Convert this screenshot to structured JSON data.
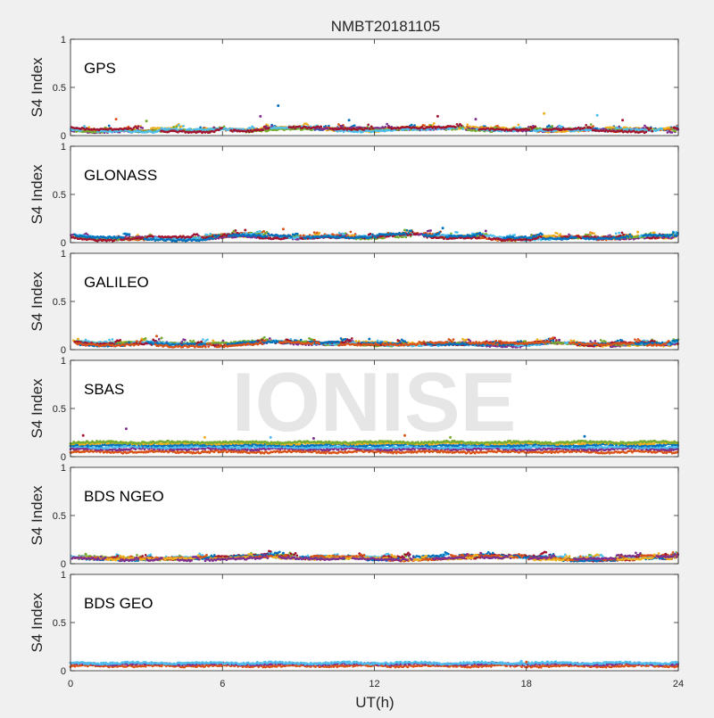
{
  "figure_title": "NMBT20181105",
  "watermark": "IONISE",
  "xlabel": "UT(h)",
  "xticks": [
    "0",
    "6",
    "12",
    "18",
    "24"
  ],
  "yticks": [
    "0",
    "0.5",
    "1"
  ],
  "ylabel": "S4 Index",
  "series_colors": [
    "#0072bd",
    "#d95319",
    "#edb120",
    "#7e2f8e",
    "#77ac30",
    "#4dbeee",
    "#a2142f"
  ],
  "chart_data": [
    {
      "type": "scatter",
      "panel_label": "GPS",
      "xlabel": "UT(h)",
      "ylabel": "S4 Index",
      "xlim": [
        0,
        24
      ],
      "ylim": [
        0,
        1
      ],
      "grid": false,
      "series_count": 7,
      "baseline": [
        0.07,
        0.05,
        0.06,
        0.05,
        0.06,
        0.05,
        0.06,
        0.05,
        0.07,
        0.08,
        0.07,
        0.06,
        0.06,
        0.07,
        0.07,
        0.08,
        0.07,
        0.06,
        0.06,
        0.06,
        0.07,
        0.07,
        0.06,
        0.05,
        0.05
      ],
      "outliers": [
        [
          8.2,
          0.31
        ],
        [
          7.5,
          0.2
        ],
        [
          14.5,
          0.2
        ],
        [
          18.7,
          0.23
        ],
        [
          20.8,
          0.21
        ],
        [
          1.8,
          0.17
        ],
        [
          3.0,
          0.15
        ],
        [
          11.0,
          0.16
        ],
        [
          16.0,
          0.17
        ],
        [
          21.8,
          0.16
        ]
      ]
    },
    {
      "type": "scatter",
      "panel_label": "GLONASS",
      "xlabel": "UT(h)",
      "ylabel": "S4 Index",
      "xlim": [
        0,
        24
      ],
      "ylim": [
        0,
        1
      ],
      "grid": false,
      "series_count": 7,
      "baseline": [
        0.07,
        0.04,
        0.04,
        0.05,
        0.04,
        0.04,
        0.07,
        0.08,
        0.06,
        0.05,
        0.07,
        0.06,
        0.06,
        0.08,
        0.08,
        0.06,
        0.07,
        0.04,
        0.04,
        0.05,
        0.05,
        0.05,
        0.06,
        0.06,
        0.06
      ],
      "outliers": [
        [
          8.4,
          0.14
        ],
        [
          13.2,
          0.13
        ],
        [
          14.7,
          0.15
        ],
        [
          16.4,
          0.12
        ],
        [
          6.9,
          0.13
        ],
        [
          22.4,
          0.11
        ]
      ]
    },
    {
      "type": "scatter",
      "panel_label": "GALILEO",
      "xlabel": "UT(h)",
      "ylabel": "S4 Index",
      "xlim": [
        0,
        24
      ],
      "ylim": [
        0,
        1
      ],
      "grid": false,
      "series_count": 7,
      "baseline": [
        0.08,
        0.06,
        0.06,
        0.07,
        0.05,
        0.05,
        0.05,
        0.07,
        0.08,
        0.07,
        0.06,
        0.07,
        0.06,
        0.06,
        0.06,
        0.06,
        0.06,
        0.05,
        0.05,
        0.07,
        0.06,
        0.05,
        0.06,
        0.06,
        0.06
      ],
      "outliers": [
        [
          0.3,
          0.11
        ],
        [
          0.6,
          0.1
        ],
        [
          3.4,
          0.14
        ],
        [
          3.6,
          0.12
        ],
        [
          11.8,
          0.11
        ],
        [
          19.3,
          0.1
        ]
      ]
    },
    {
      "type": "scatter",
      "panel_label": "SBAS",
      "xlabel": "UT(h)",
      "ylabel": "S4 Index",
      "xlim": [
        0,
        24
      ],
      "ylim": [
        0,
        1
      ],
      "grid": false,
      "series_count": 6,
      "levels": [
        0.05,
        0.08,
        0.1,
        0.12,
        0.14,
        0.15
      ],
      "outliers": [
        [
          2.2,
          0.29
        ],
        [
          0.5,
          0.22
        ],
        [
          5.3,
          0.2
        ],
        [
          7.9,
          0.2
        ],
        [
          13.2,
          0.22
        ],
        [
          15.0,
          0.2
        ],
        [
          20.3,
          0.21
        ],
        [
          9.6,
          0.19
        ]
      ]
    },
    {
      "type": "scatter",
      "panel_label": "BDS NGEO",
      "xlabel": "UT(h)",
      "ylabel": "S4 Index",
      "xlim": [
        0,
        24
      ],
      "ylim": [
        0,
        1
      ],
      "grid": false,
      "series_count": 7,
      "baseline": [
        0.07,
        0.06,
        0.05,
        0.05,
        0.05,
        0.05,
        0.06,
        0.07,
        0.08,
        0.07,
        0.06,
        0.06,
        0.06,
        0.05,
        0.06,
        0.07,
        0.08,
        0.07,
        0.06,
        0.06,
        0.05,
        0.05,
        0.06,
        0.07,
        0.07
      ],
      "outliers": [
        [
          0.6,
          0.1
        ],
        [
          8.4,
          0.11
        ],
        [
          16.2,
          0.11
        ],
        [
          23.5,
          0.1
        ]
      ]
    },
    {
      "type": "scatter",
      "panel_label": "BDS GEO",
      "xlabel": "UT(h)",
      "ylabel": "S4 Index",
      "xlim": [
        0,
        24
      ],
      "ylim": [
        0,
        1
      ],
      "grid": false,
      "series_count": 3,
      "levels": [
        0.05,
        0.07,
        0.08
      ],
      "outliers": [
        [
          17.8,
          0.1
        ],
        [
          18.0,
          0.09
        ]
      ]
    }
  ]
}
